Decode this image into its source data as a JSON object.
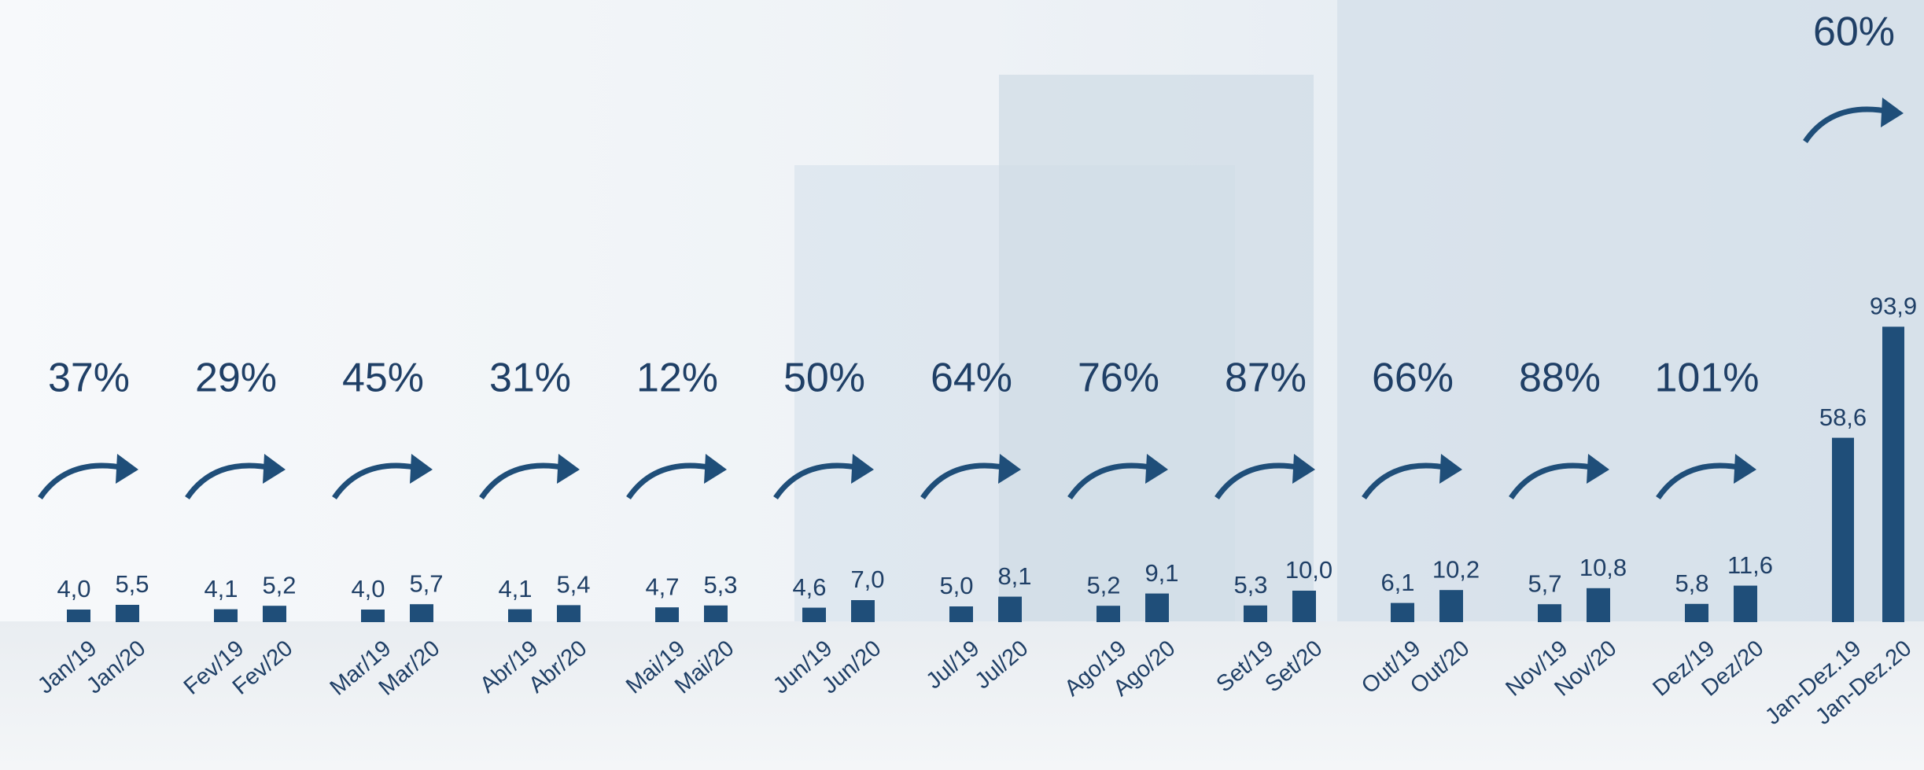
{
  "chart_data": {
    "type": "bar",
    "color": "#1f4e79",
    "groups": [
      {
        "labels": [
          "Jan/19",
          "Jan/20"
        ],
        "values": [
          4.0,
          5.5
        ],
        "value_labels": [
          "4,0",
          "5,5"
        ],
        "growth": {
          "value": 37,
          "label": "37%"
        }
      },
      {
        "labels": [
          "Fev/19",
          "Fev/20"
        ],
        "values": [
          4.1,
          5.2
        ],
        "value_labels": [
          "4,1",
          "5,2"
        ],
        "growth": {
          "value": 29,
          "label": "29%"
        }
      },
      {
        "labels": [
          "Mar/19",
          "Mar/20"
        ],
        "values": [
          4.0,
          5.7
        ],
        "value_labels": [
          "4,0",
          "5,7"
        ],
        "growth": {
          "value": 45,
          "label": "45%"
        }
      },
      {
        "labels": [
          "Abr/19",
          "Abr/20"
        ],
        "values": [
          4.1,
          5.4
        ],
        "value_labels": [
          "4,1",
          "5,4"
        ],
        "growth": {
          "value": 31,
          "label": "31%"
        }
      },
      {
        "labels": [
          "Mai/19",
          "Mai/20"
        ],
        "values": [
          4.7,
          5.3
        ],
        "value_labels": [
          "4,7",
          "5,3"
        ],
        "growth": {
          "value": 12,
          "label": "12%"
        }
      },
      {
        "labels": [
          "Jun/19",
          "Jun/20"
        ],
        "values": [
          4.6,
          7.0
        ],
        "value_labels": [
          "4,6",
          "7,0"
        ],
        "growth": {
          "value": 50,
          "label": "50%"
        }
      },
      {
        "labels": [
          "Jul/19",
          "Jul/20"
        ],
        "values": [
          5.0,
          8.1
        ],
        "value_labels": [
          "5,0",
          "8,1"
        ],
        "growth": {
          "value": 64,
          "label": "64%"
        }
      },
      {
        "labels": [
          "Ago/19",
          "Ago/20"
        ],
        "values": [
          5.2,
          9.1
        ],
        "value_labels": [
          "5,2",
          "9,1"
        ],
        "growth": {
          "value": 76,
          "label": "76%"
        }
      },
      {
        "labels": [
          "Set/19",
          "Set/20"
        ],
        "values": [
          5.3,
          10.0
        ],
        "value_labels": [
          "5,3",
          "10,0"
        ],
        "growth": {
          "value": 87,
          "label": "87%"
        }
      },
      {
        "labels": [
          "Out/19",
          "Out/20"
        ],
        "values": [
          6.1,
          10.2
        ],
        "value_labels": [
          "6,1",
          "10,2"
        ],
        "growth": {
          "value": 66,
          "label": "66%"
        }
      },
      {
        "labels": [
          "Nov/19",
          "Nov/20"
        ],
        "values": [
          5.7,
          10.8
        ],
        "value_labels": [
          "5,7",
          "10,8"
        ],
        "growth": {
          "value": 88,
          "label": "88%"
        }
      },
      {
        "labels": [
          "Dez/19",
          "Dez/20"
        ],
        "values": [
          5.8,
          11.6
        ],
        "value_labels": [
          "5,8",
          "11,6"
        ],
        "growth": {
          "value": 101,
          "label": "101%"
        }
      },
      {
        "labels": [
          "Jan-Dez.19",
          "Jan-Dez.20"
        ],
        "values": [
          58.6,
          93.9
        ],
        "value_labels": [
          "58,6",
          "93,9"
        ],
        "growth": {
          "value": 60,
          "label": "60%"
        }
      }
    ]
  }
}
